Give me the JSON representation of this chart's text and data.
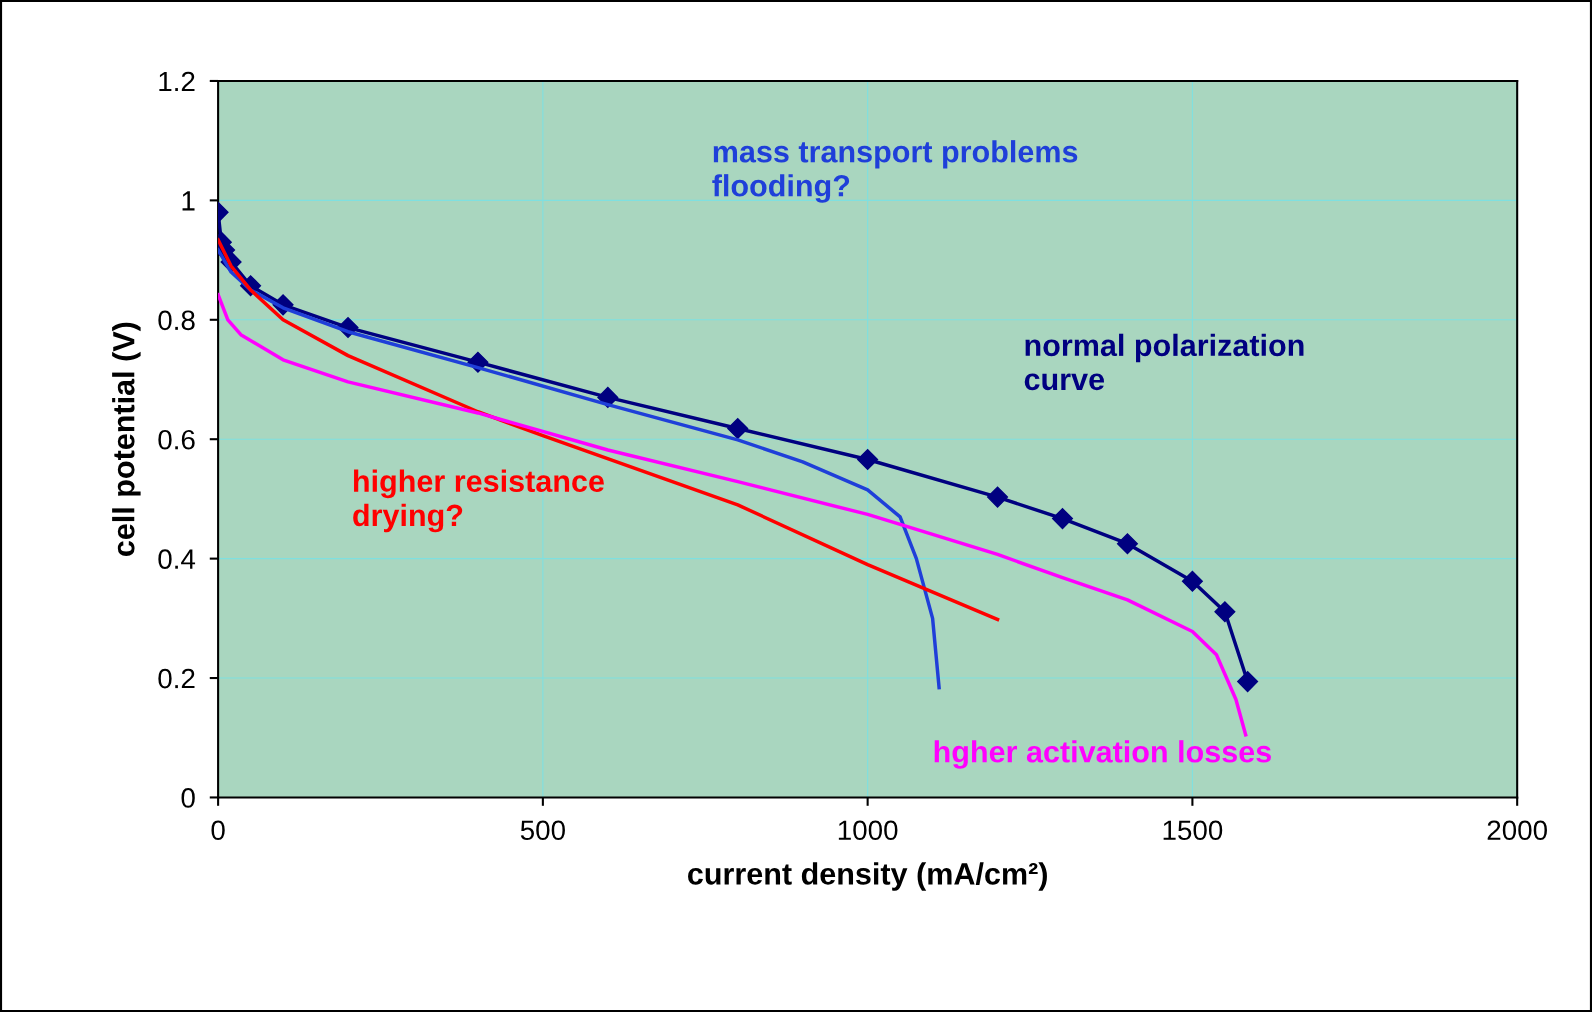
{
  "chart_data": {
    "type": "line",
    "xlabel": "current density (mA/cm²)",
    "ylabel": "cell potential (V)",
    "xlim": [
      0,
      2000
    ],
    "xticks": [
      0,
      500,
      1000,
      1500,
      2000
    ],
    "ylim": [
      0,
      1.2
    ],
    "yticks": [
      0,
      0.2,
      0.4,
      0.6,
      0.8,
      1,
      1.2
    ],
    "grid": true,
    "legend": false,
    "series": [
      {
        "name": "normal polarization\ncurve",
        "color": "#000080",
        "marker": "diamond",
        "x": [
          0,
          5,
          10,
          20,
          50,
          100,
          200,
          400,
          600,
          800,
          1000,
          1200,
          1300,
          1400,
          1500,
          1550,
          1585
        ],
        "values": [
          0.98,
          0.93,
          0.917,
          0.897,
          0.857,
          0.825,
          0.787,
          0.729,
          0.67,
          0.618,
          0.566,
          0.503,
          0.467,
          0.425,
          0.362,
          0.311,
          0.194
        ]
      },
      {
        "name": "mass transport problems\nflooding?",
        "color": "#1f3fd9",
        "marker": "none",
        "x": [
          0,
          20,
          50,
          100,
          200,
          400,
          600,
          800,
          900,
          1000,
          1050,
          1075,
          1100,
          1110
        ],
        "values": [
          0.917,
          0.88,
          0.85,
          0.82,
          0.78,
          0.72,
          0.658,
          0.599,
          0.562,
          0.515,
          0.47,
          0.4,
          0.3,
          0.184
        ]
      },
      {
        "name": "higher resistance\ndrying?",
        "color": "#ff0000",
        "marker": "none",
        "x": [
          0,
          20,
          50,
          100,
          200,
          400,
          500,
          800,
          1000,
          1200
        ],
        "values": [
          0.934,
          0.89,
          0.85,
          0.8,
          0.74,
          0.646,
          0.606,
          0.49,
          0.39,
          0.298
        ]
      },
      {
        "name": "hgher activation losses",
        "color": "#ff00ff",
        "marker": "none",
        "x": [
          0,
          15,
          35,
          100,
          200,
          400,
          600,
          800,
          1000,
          1200,
          1300,
          1400,
          1500,
          1537,
          1567,
          1582
        ],
        "values": [
          0.842,
          0.8,
          0.775,
          0.733,
          0.696,
          0.644,
          0.582,
          0.529,
          0.474,
          0.407,
          0.368,
          0.331,
          0.278,
          0.239,
          0.164,
          0.105
        ]
      }
    ]
  }
}
